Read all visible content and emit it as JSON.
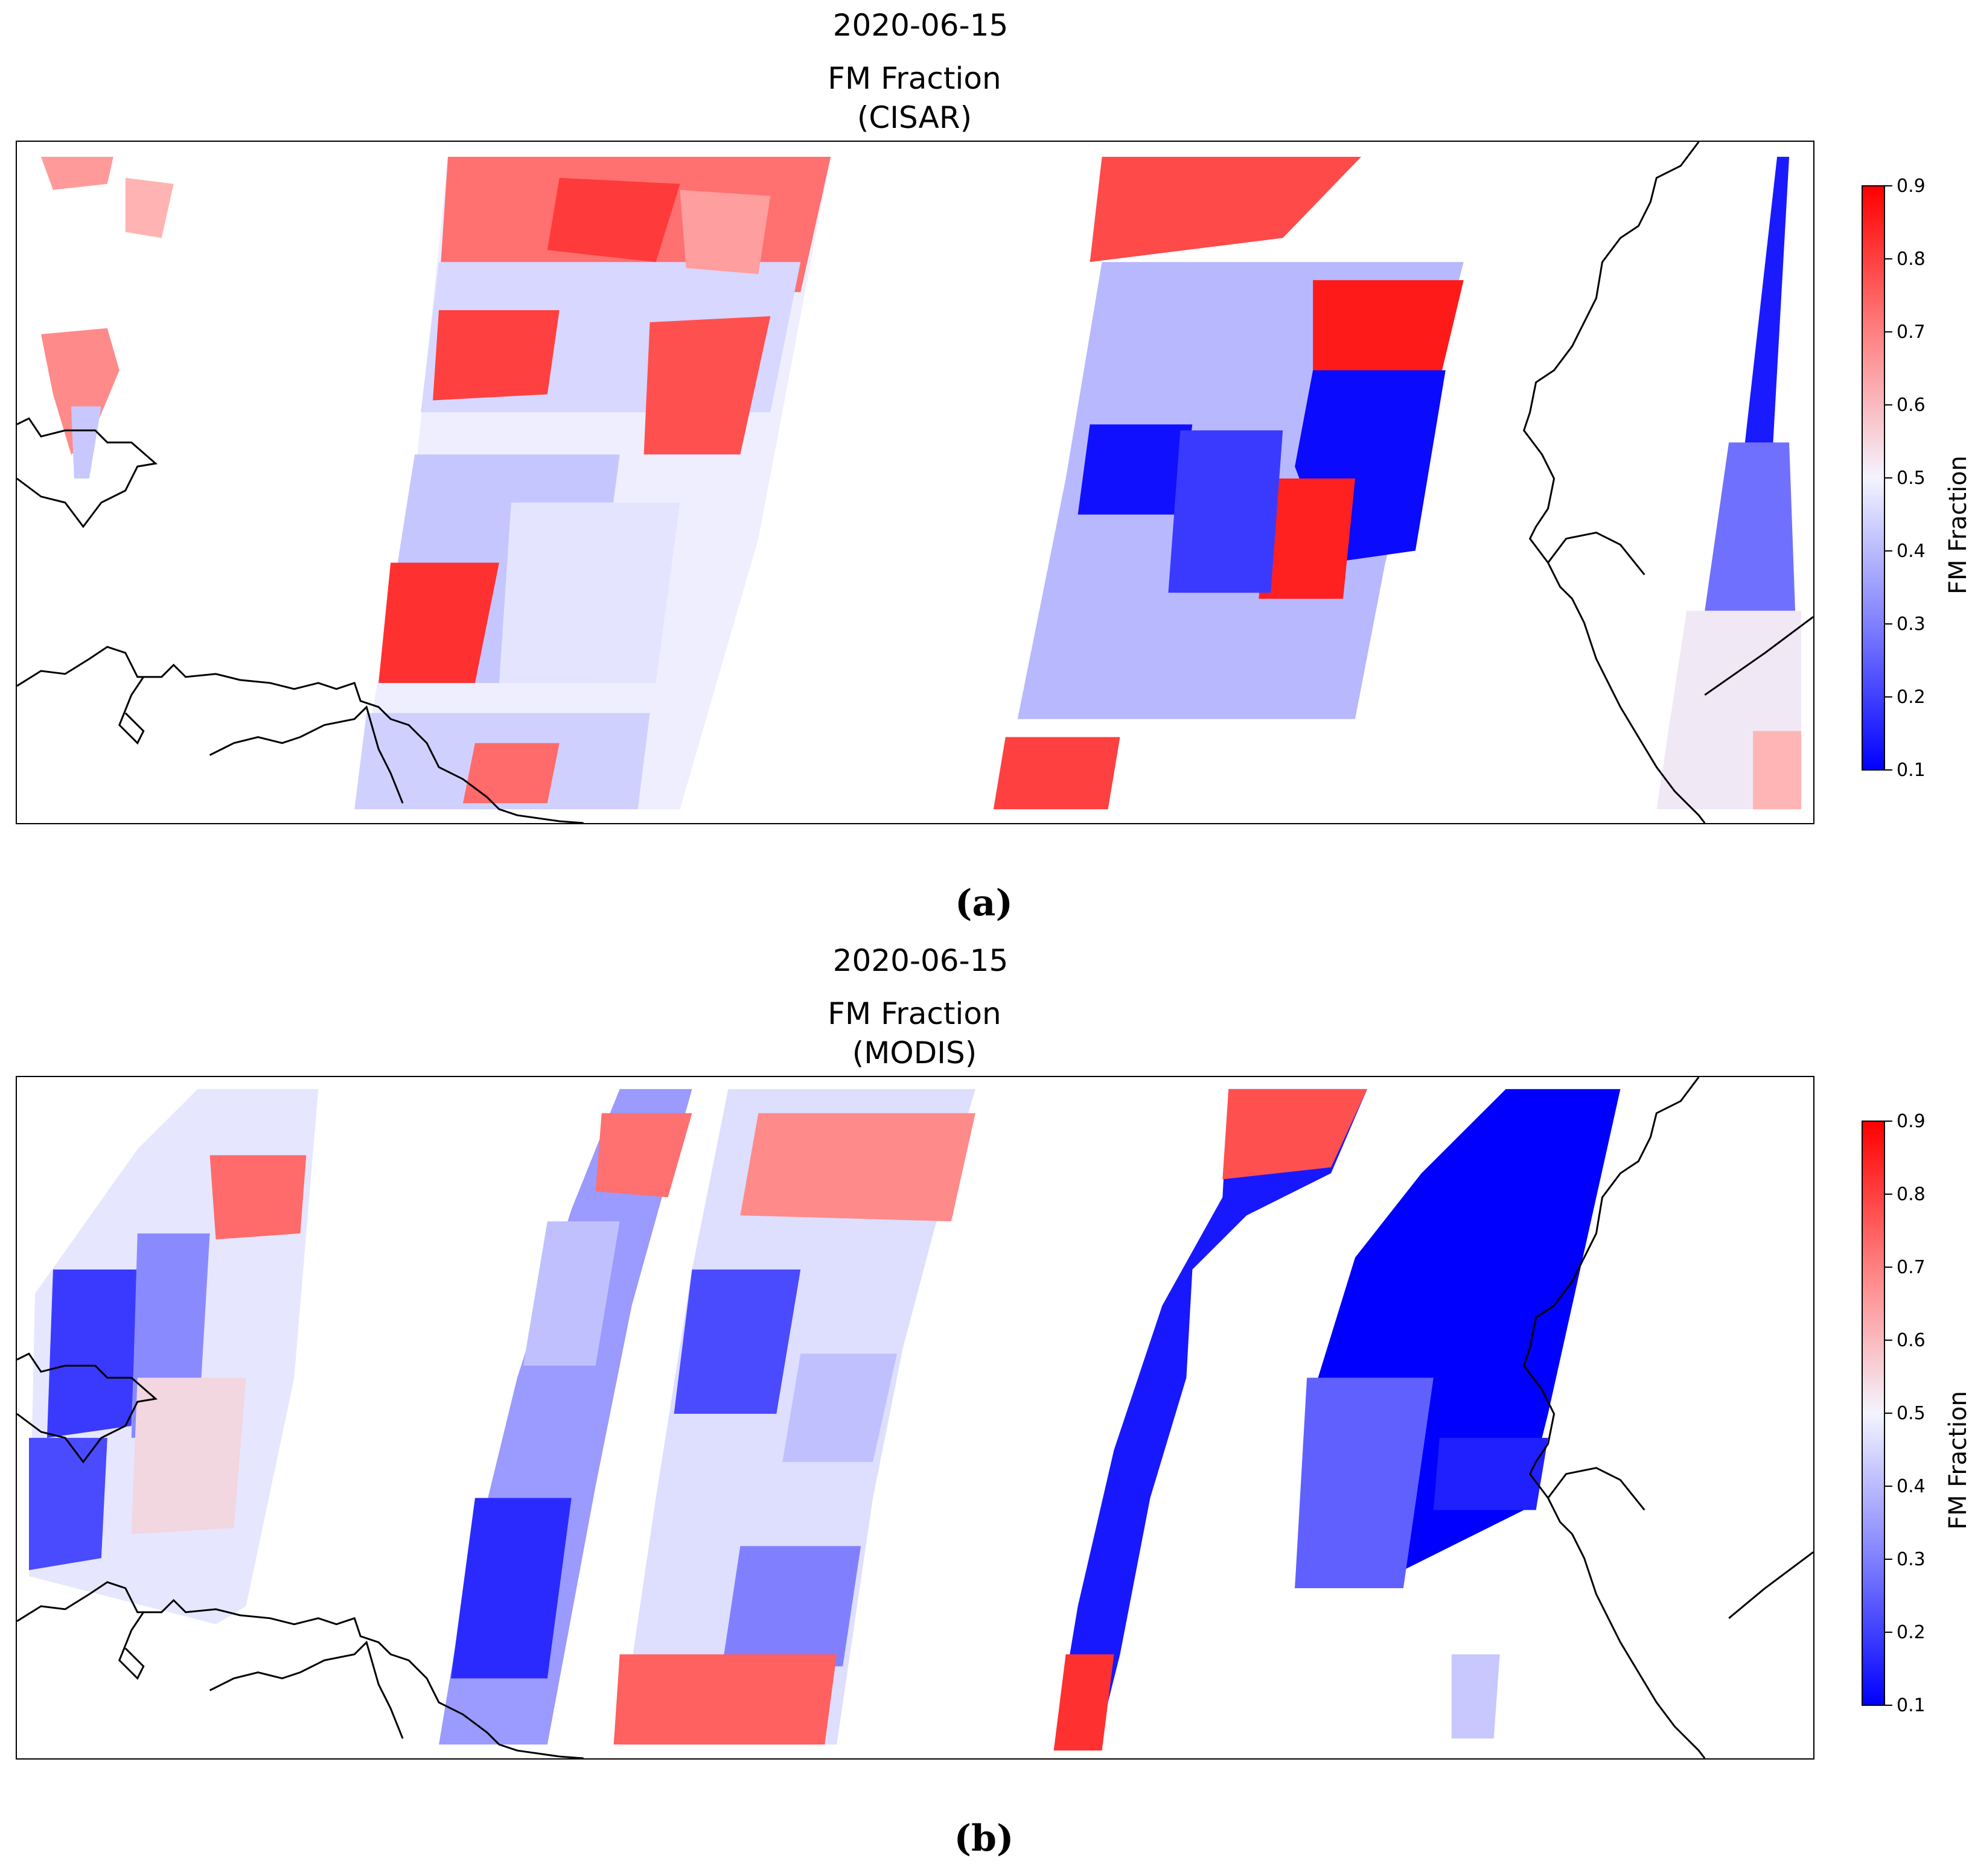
{
  "panels": [
    {
      "id": "a",
      "date": "2020-06-15",
      "title": "FM Fraction",
      "subtitle": "(CISAR)",
      "caption": "(a)",
      "colorbar": {
        "label": "FM Fraction",
        "ticks": [
          "0.9",
          "0.8",
          "0.7",
          "0.6",
          "0.5",
          "0.4",
          "0.3",
          "0.2",
          "0.1"
        ],
        "min": 0.1,
        "max": 0.9
      },
      "colormap": {
        "low": "#0000ff",
        "mid": "#ffffff",
        "high": "#ff0000"
      },
      "regions": [
        {
          "name": "west-strip-red",
          "value": 0.78
        },
        {
          "name": "north-swath-mixed",
          "value": 0.72
        },
        {
          "name": "central-swath-mixed",
          "value": 0.58
        },
        {
          "name": "south-swath-light",
          "value": 0.42
        },
        {
          "name": "east-swath-blue",
          "value": 0.28
        },
        {
          "name": "east-core-blue",
          "value": 0.12
        },
        {
          "name": "east-red-plume",
          "value": 0.85
        },
        {
          "name": "far-east-strip-blue",
          "value": 0.15
        }
      ]
    },
    {
      "id": "b",
      "date": "2020-06-15",
      "title": "FM Fraction",
      "subtitle": "(MODIS)",
      "caption": "(b)",
      "colorbar": {
        "label": "FM Fraction",
        "ticks": [
          "0.9",
          "0.8",
          "0.7",
          "0.6",
          "0.5",
          "0.4",
          "0.3",
          "0.2",
          "0.1"
        ],
        "min": 0.1,
        "max": 0.9
      },
      "colormap": {
        "low": "#0000ff",
        "mid": "#ffffff",
        "high": "#ff0000"
      },
      "regions": [
        {
          "name": "strip-1-mixed",
          "value": 0.45
        },
        {
          "name": "strip-2-blue",
          "value": 0.25
        },
        {
          "name": "strip-3-mixed",
          "value": 0.55
        },
        {
          "name": "strip-4-blue",
          "value": 0.12
        },
        {
          "name": "strip-5-blue",
          "value": 0.1
        }
      ]
    }
  ]
}
